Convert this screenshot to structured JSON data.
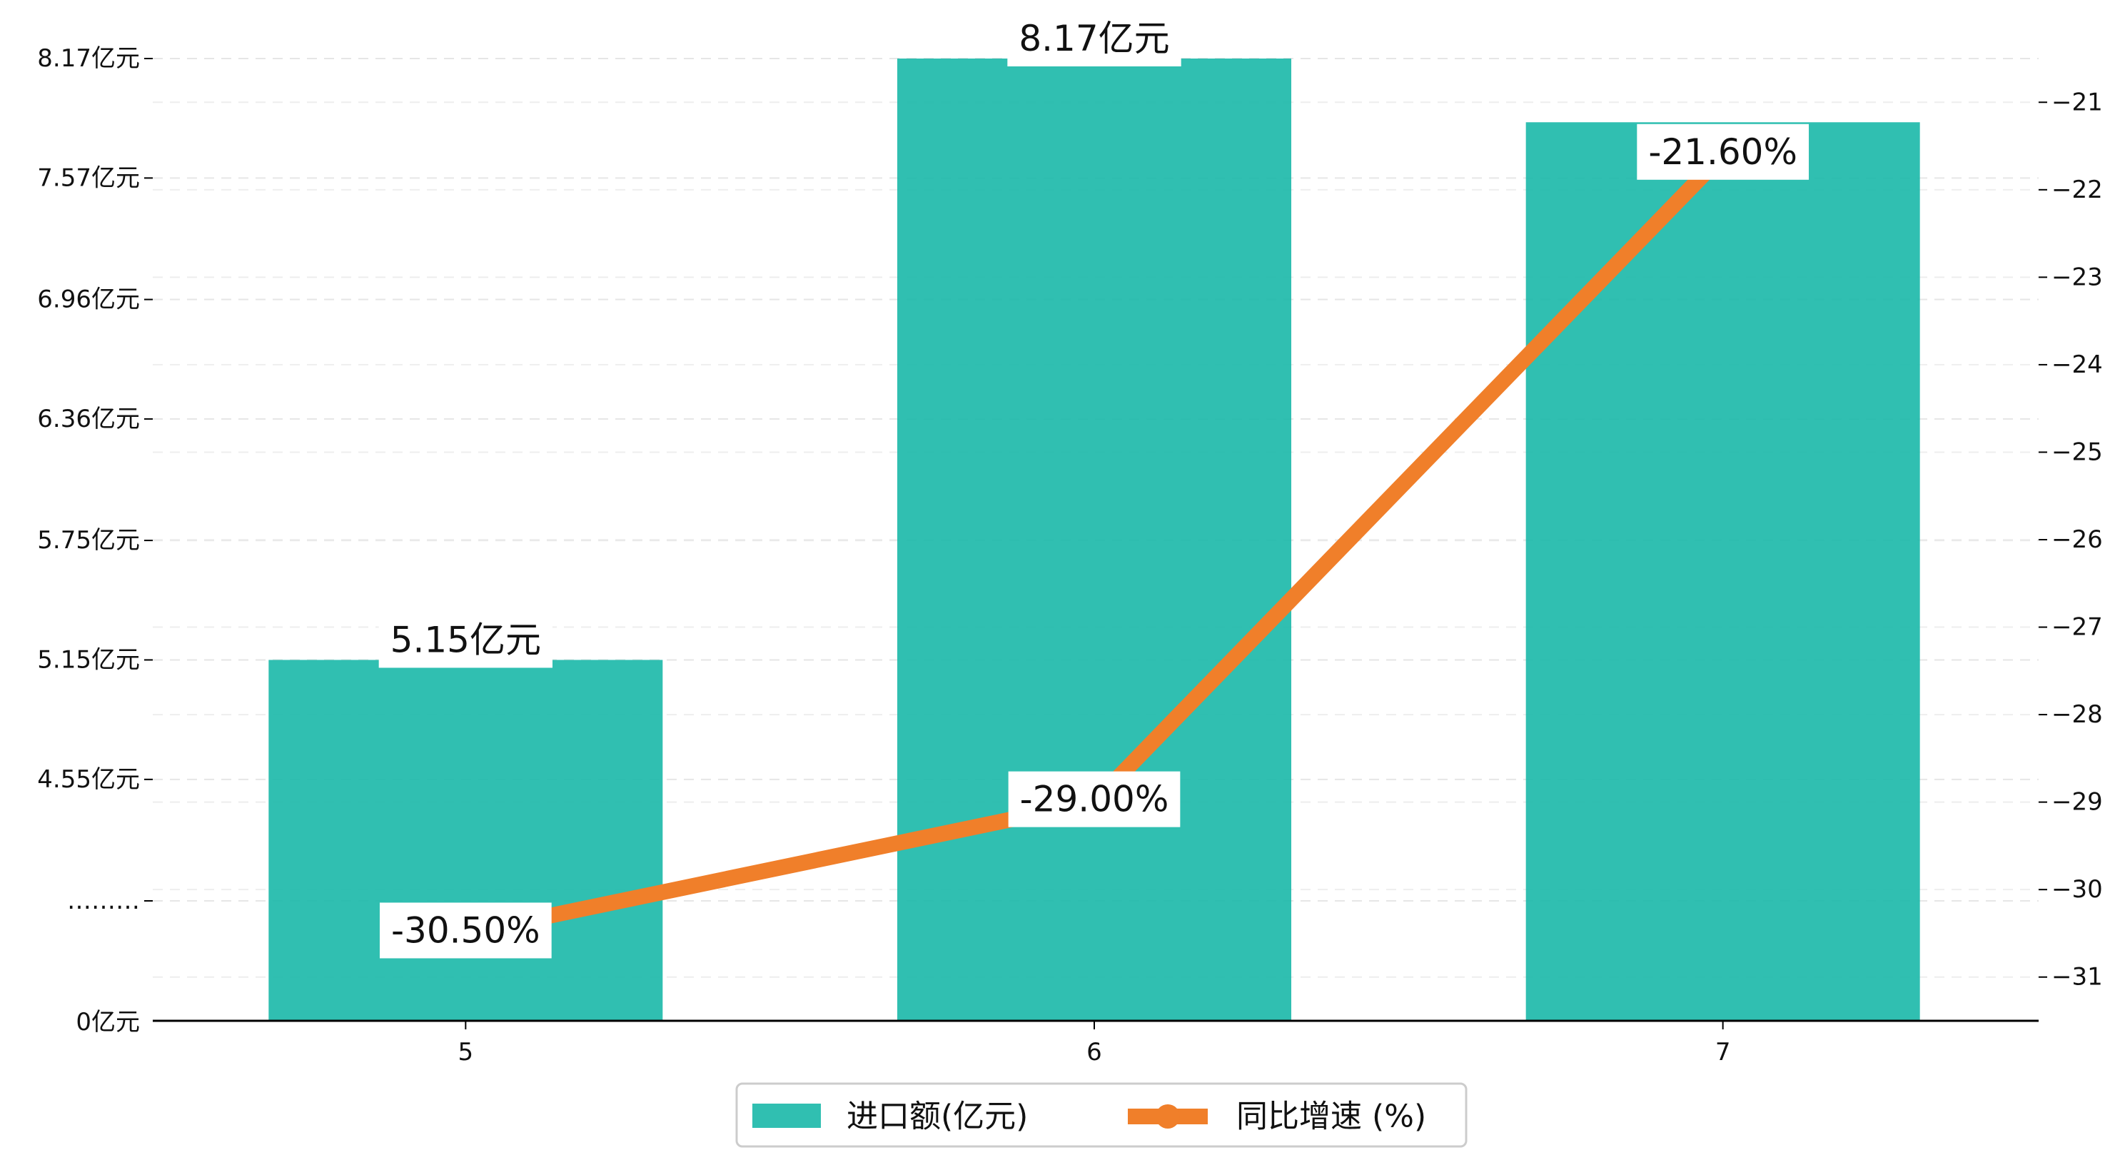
{
  "chart_data": {
    "type": "bar",
    "categories": [
      "5",
      "6",
      "7"
    ],
    "series": [
      {
        "name": "进口额(亿元)",
        "kind": "bar",
        "axis": "left",
        "color": "#1ab8a8",
        "values": [
          5.15,
          8.17,
          7.85
        ],
        "labels": [
          "5.15亿元",
          "8.17亿元",
          ""
        ]
      },
      {
        "name": "同比增速 (%)",
        "kind": "line",
        "axis": "right",
        "color": "#f07f2a",
        "values": [
          -30.5,
          -29.0,
          -21.6
        ],
        "labels": [
          "-30.50%",
          "-29.00%",
          "-21.60%"
        ]
      }
    ],
    "y_left": {
      "tick_values": [
        0,
        3.94,
        4.55,
        5.15,
        5.75,
        6.36,
        6.96,
        7.57,
        8.17
      ],
      "tick_labels": [
        "0亿元",
        "………",
        "4.55亿元",
        "5.15亿元",
        "5.75亿元",
        "6.36亿元",
        "6.96亿元",
        "7.57亿元",
        "8.17亿元"
      ],
      "break_below": 3.94
    },
    "y_right": {
      "ylim": [
        -31.5,
        -20.5
      ],
      "tick_values": [
        -31,
        -30,
        -29,
        -28,
        -27,
        -26,
        -25,
        -24,
        -23,
        -22,
        -21
      ],
      "tick_labels": [
        "−31",
        "−30",
        "−29",
        "−28",
        "−27",
        "−26",
        "−25",
        "−24",
        "−23",
        "−22",
        "−21"
      ]
    },
    "grid": true,
    "legend": "bottom-center"
  }
}
